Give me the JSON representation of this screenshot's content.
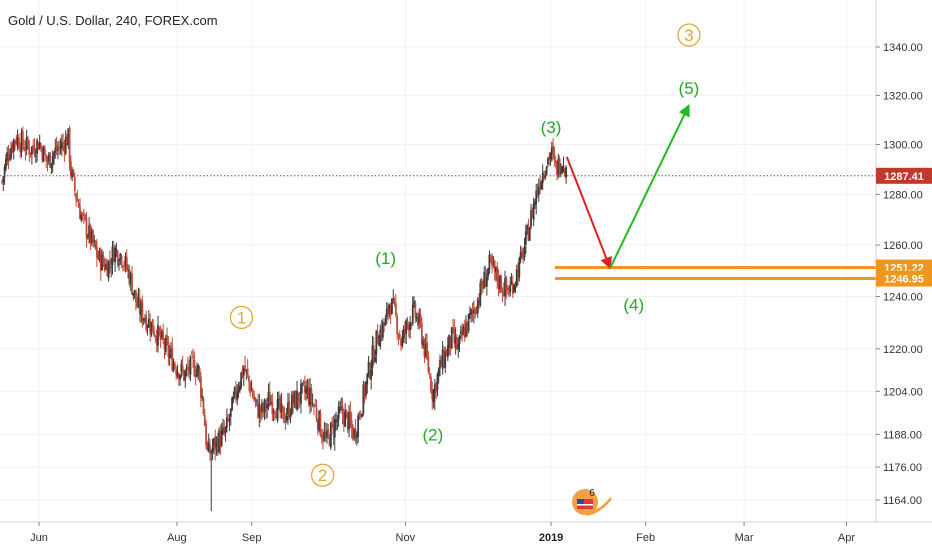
{
  "title": "Gold / U.S. Dollar, 240, FOREX.com",
  "colors": {
    "up_candle": "#3a3a3a",
    "down_candle": "#c44a3a",
    "last_price_line": "#c0392b",
    "orange": "#f0961e",
    "green": "#22bb22",
    "red": "#dd2020",
    "orange_label": "#e5a63a",
    "green_label": "#22aa22",
    "axis_line": "#d0d0d0",
    "grid": "#f2f2f2"
  },
  "badge": {
    "count": "6",
    "icon": "tradingview-idea-icon"
  },
  "chart_data": {
    "type": "candlestick",
    "title": "Gold / U.S. Dollar, 240, FOREX.com",
    "x_axis": {
      "ticks": [
        {
          "label": "Jun",
          "x": 0.6,
          "bold": false
        },
        {
          "label": "Aug",
          "x": 2.35,
          "bold": false
        },
        {
          "label": "Sep",
          "x": 3.3,
          "bold": false
        },
        {
          "label": "Nov",
          "x": 5.25,
          "bold": false
        },
        {
          "label": "2019",
          "x": 7.1,
          "bold": true
        },
        {
          "label": "Feb",
          "x": 8.3,
          "bold": false
        },
        {
          "label": "Mar",
          "x": 9.55,
          "bold": false
        },
        {
          "label": "Apr",
          "x": 10.85,
          "bold": false
        }
      ],
      "range": [
        0.13,
        11.25
      ]
    },
    "y_axis": {
      "ticks": [
        1164,
        1176,
        1188,
        1204,
        1220,
        1240,
        1260,
        1280,
        1300,
        1320,
        1340
      ],
      "tick_labels": [
        "1164.00",
        "1176.00",
        "1188.00",
        "1204.00",
        "1220.00",
        "1240.00",
        "1260.00",
        "1280.00",
        "1300.00",
        "1320.00",
        "1340.00"
      ],
      "range": [
        1158,
        1358
      ],
      "scale": "log"
    },
    "price_path": [
      [
        0.13,
        1285
      ],
      [
        0.2,
        1296
      ],
      [
        0.3,
        1303
      ],
      [
        0.4,
        1300
      ],
      [
        0.5,
        1298
      ],
      [
        0.6,
        1301
      ],
      [
        0.7,
        1293
      ],
      [
        0.8,
        1297
      ],
      [
        0.9,
        1300
      ],
      [
        0.97,
        1303
      ],
      [
        1.0,
        1290
      ],
      [
        1.05,
        1282
      ],
      [
        1.15,
        1270
      ],
      [
        1.25,
        1263
      ],
      [
        1.35,
        1255
      ],
      [
        1.45,
        1252
      ],
      [
        1.5,
        1253
      ],
      [
        1.55,
        1258
      ],
      [
        1.65,
        1256
      ],
      [
        1.75,
        1248
      ],
      [
        1.85,
        1236
      ],
      [
        1.95,
        1232
      ],
      [
        2.05,
        1228
      ],
      [
        2.15,
        1223
      ],
      [
        2.25,
        1218
      ],
      [
        2.35,
        1213
      ],
      [
        2.45,
        1210
      ],
      [
        2.55,
        1214
      ],
      [
        2.62,
        1212
      ],
      [
        2.68,
        1200
      ],
      [
        2.74,
        1180
      ],
      [
        2.8,
        1183
      ],
      [
        2.88,
        1186
      ],
      [
        2.96,
        1188
      ],
      [
        3.04,
        1196
      ],
      [
        3.12,
        1206
      ],
      [
        3.2,
        1213
      ],
      [
        3.28,
        1206
      ],
      [
        3.36,
        1198
      ],
      [
        3.44,
        1196
      ],
      [
        3.52,
        1201
      ],
      [
        3.6,
        1199
      ],
      [
        3.7,
        1194
      ],
      [
        3.8,
        1199
      ],
      [
        3.9,
        1202
      ],
      [
        4.0,
        1204
      ],
      [
        4.1,
        1198
      ],
      [
        4.18,
        1190
      ],
      [
        4.25,
        1185
      ],
      [
        4.35,
        1192
      ],
      [
        4.45,
        1196
      ],
      [
        4.52,
        1193
      ],
      [
        4.6,
        1188
      ],
      [
        4.7,
        1200
      ],
      [
        4.8,
        1213
      ],
      [
        4.9,
        1225
      ],
      [
        5.0,
        1230
      ],
      [
        5.05,
        1238
      ],
      [
        5.12,
        1233
      ],
      [
        5.2,
        1222
      ],
      [
        5.28,
        1230
      ],
      [
        5.36,
        1234
      ],
      [
        5.44,
        1228
      ],
      [
        5.52,
        1216
      ],
      [
        5.6,
        1203
      ],
      [
        5.68,
        1212
      ],
      [
        5.76,
        1218
      ],
      [
        5.84,
        1224
      ],
      [
        5.92,
        1220
      ],
      [
        6.0,
        1227
      ],
      [
        6.08,
        1232
      ],
      [
        6.16,
        1238
      ],
      [
        6.24,
        1245
      ],
      [
        6.32,
        1252
      ],
      [
        6.4,
        1248
      ],
      [
        6.48,
        1244
      ],
      [
        6.56,
        1242
      ],
      [
        6.64,
        1247
      ],
      [
        6.72,
        1254
      ],
      [
        6.8,
        1264
      ],
      [
        6.88,
        1276
      ],
      [
        6.96,
        1286
      ],
      [
        7.04,
        1293
      ],
      [
        7.1,
        1297
      ],
      [
        7.16,
        1290
      ],
      [
        7.22,
        1293
      ],
      [
        7.26,
        1294
      ],
      [
        7.3,
        1287
      ]
    ],
    "low_points": [
      [
        2.78,
        1160
      ],
      [
        5.62,
        1197
      ],
      [
        4.35,
        1182
      ]
    ],
    "last_price": 1287.41,
    "horizontal_levels": [
      1251.22,
      1246.95
    ],
    "projection_lines": [
      {
        "color": "red",
        "from": [
          7.3,
          1295
        ],
        "to": [
          7.85,
          1251
        ]
      },
      {
        "color": "green",
        "from": [
          7.85,
          1251
        ],
        "to": [
          8.85,
          1316
        ]
      }
    ],
    "wave_labels": [
      {
        "text": "1",
        "x": 3.17,
        "y": 1232,
        "style": "orange-circle"
      },
      {
        "text": "2",
        "x": 4.2,
        "y": 1173,
        "style": "orange-circle"
      },
      {
        "text": "3",
        "x": 8.85,
        "y": 1345,
        "style": "orange-circle"
      },
      {
        "text": "(1)",
        "x": 5.0,
        "y": 1255,
        "style": "green"
      },
      {
        "text": "(2)",
        "x": 5.6,
        "y": 1188,
        "style": "green"
      },
      {
        "text": "(3)",
        "x": 7.1,
        "y": 1307,
        "style": "green"
      },
      {
        "text": "(4)",
        "x": 8.15,
        "y": 1237,
        "style": "green"
      },
      {
        "text": "(5)",
        "x": 8.85,
        "y": 1323,
        "style": "green"
      }
    ],
    "price_tags": [
      {
        "label": "1287.41",
        "value": 1287.41,
        "color": "#c0392b"
      },
      {
        "label": "1251.22",
        "value": 1251.22,
        "color": "#f0961e"
      },
      {
        "label": "1246.95",
        "value": 1246.95,
        "color": "#f0961e"
      }
    ]
  }
}
